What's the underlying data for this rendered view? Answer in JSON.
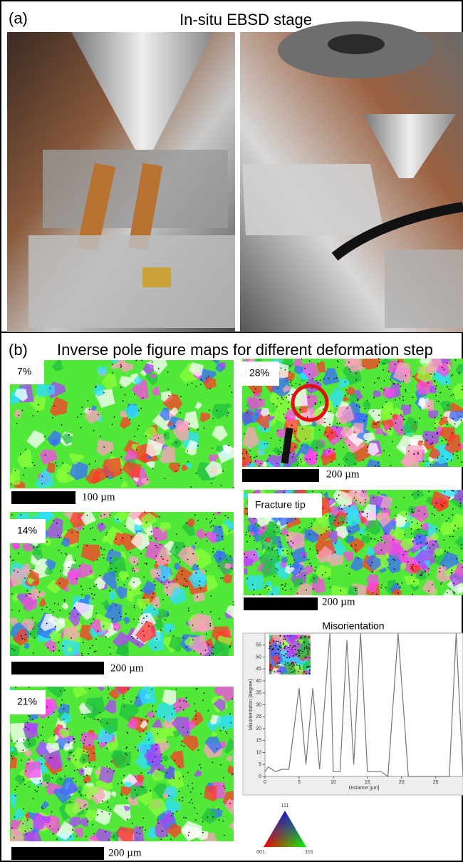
{
  "panel_a": {
    "label": "(a)",
    "title": "In-situ EBSD stage"
  },
  "panel_b": {
    "label": "(b)",
    "title": "Inverse pole figure maps for different deformation step",
    "maps": [
      {
        "label": "7%",
        "scale_bar": "100 µm"
      },
      {
        "label": "14%",
        "scale_bar": "200 µm"
      },
      {
        "label": "21%",
        "scale_bar": "200 µm"
      },
      {
        "label": "28%",
        "scale_bar": "200 µm"
      },
      {
        "label": "Fracture tip",
        "scale_bar": "200 µm"
      }
    ],
    "legend": {
      "top": "111",
      "left": "001",
      "right": "101"
    }
  },
  "chart_data": {
    "type": "line",
    "title": "Misorientation",
    "x_label": "Distance [µm]",
    "y_label": "Misorientation [degree]",
    "x": [
      0,
      0.5,
      1.5,
      2.5,
      3.5,
      5,
      6,
      7,
      8,
      9.5,
      10,
      11,
      12,
      13,
      14,
      15,
      17,
      18,
      19.5,
      21,
      27,
      28,
      29
    ],
    "values": [
      2,
      4,
      2,
      3,
      3,
      37,
      5,
      37,
      3,
      60,
      2,
      2,
      57,
      5,
      60,
      2,
      2,
      0,
      60,
      0,
      0,
      60,
      0
    ],
    "color": "#777",
    "xlim": [
      0,
      29
    ],
    "ylim": [
      0,
      60
    ],
    "xticks": [
      0,
      5,
      10,
      15,
      20,
      25
    ],
    "yticks": [
      0,
      5,
      10,
      15,
      20,
      25,
      30,
      35,
      40,
      45,
      50,
      55
    ]
  }
}
